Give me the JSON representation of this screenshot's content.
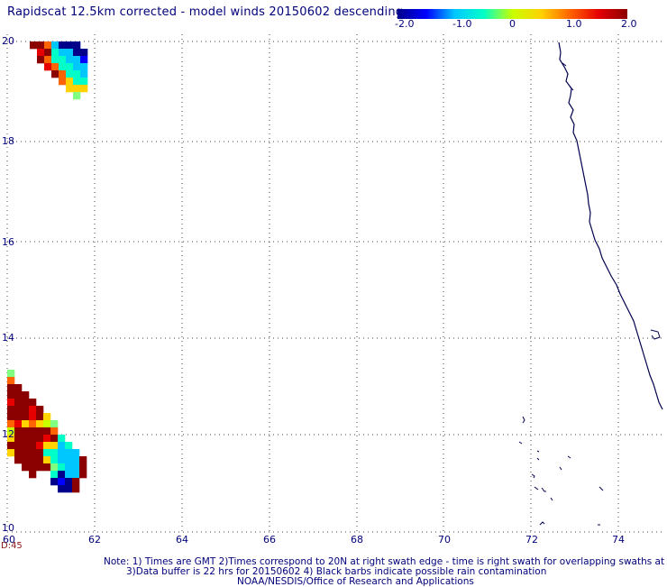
{
  "title": "Rapidscat 12.5km corrected - model winds 20150602 descending",
  "colorbar": {
    "labels": [
      "-2.0",
      "-1.0",
      "0",
      "1.0",
      "2.0"
    ],
    "colors": [
      "#00008b",
      "#0000ff",
      "#00c8ff",
      "#00ffc8",
      "#c8ff00",
      "#ffd200",
      "#ff6400",
      "#e60000",
      "#8b0000"
    ]
  },
  "axes": {
    "lat_labels": [
      "20",
      "18",
      "16",
      "14",
      "12",
      "10"
    ],
    "lon_labels": [
      "60",
      "62",
      "64",
      "66",
      "68",
      "70",
      "72",
      "74"
    ],
    "lon_range": [
      60,
      75
    ],
    "lat_range": [
      10,
      20
    ]
  },
  "time_label": "D:45",
  "notes": [
    "Note: 1) Times are GMT 2)Times correspond to 20N at right swath edge - time is right swath for overlapping swaths at 20N",
    "3)Data buffer is 22 hrs for 20150602 4) Black barbs indicate possible rain contamination",
    "NOAA/NESDIS/Office of Research and Applications"
  ],
  "colors": {
    "text": "#00007a",
    "coast": "#00004d",
    "grid": "#555555"
  }
}
